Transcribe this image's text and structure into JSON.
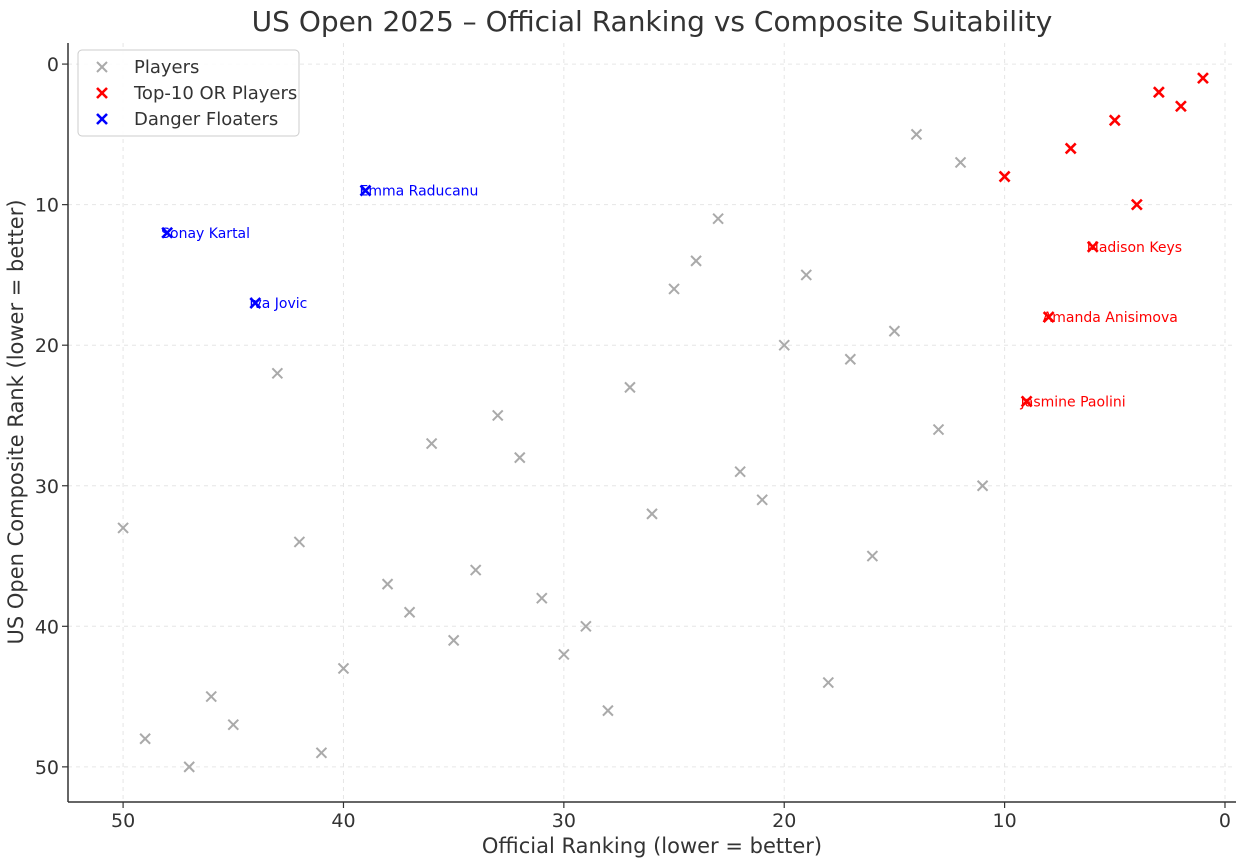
{
  "chart_data": {
    "type": "scatter",
    "title": "US Open 2025 – Official Ranking vs Composite Suitability",
    "xlabel": "Official Ranking (lower = better)",
    "ylabel": "US Open Composite Rank (lower = better)",
    "xlim": [
      52.5,
      -0.5
    ],
    "ylim": [
      52.5,
      -1.5
    ],
    "x_inverted": true,
    "y_inverted": true,
    "x_ticks": [
      50,
      40,
      30,
      20,
      10,
      0
    ],
    "y_ticks": [
      0,
      10,
      20,
      30,
      40,
      50
    ],
    "grid": true,
    "legend_position": "top-left",
    "series": [
      {
        "name": "Players",
        "color": "#aaaaaa",
        "marker": "x",
        "points": [
          {
            "x": 14,
            "y": 5
          },
          {
            "x": 12,
            "y": 7
          },
          {
            "x": 23,
            "y": 11
          },
          {
            "x": 24,
            "y": 14
          },
          {
            "x": 19,
            "y": 15
          },
          {
            "x": 25,
            "y": 16
          },
          {
            "x": 15,
            "y": 19
          },
          {
            "x": 20,
            "y": 20
          },
          {
            "x": 17,
            "y": 21
          },
          {
            "x": 43,
            "y": 22
          },
          {
            "x": 27,
            "y": 23
          },
          {
            "x": 33,
            "y": 25
          },
          {
            "x": 13,
            "y": 26
          },
          {
            "x": 36,
            "y": 27
          },
          {
            "x": 32,
            "y": 28
          },
          {
            "x": 22,
            "y": 29
          },
          {
            "x": 11,
            "y": 30
          },
          {
            "x": 21,
            "y": 31
          },
          {
            "x": 26,
            "y": 32
          },
          {
            "x": 50,
            "y": 33
          },
          {
            "x": 42,
            "y": 34
          },
          {
            "x": 16,
            "y": 35
          },
          {
            "x": 34,
            "y": 36
          },
          {
            "x": 38,
            "y": 37
          },
          {
            "x": 31,
            "y": 38
          },
          {
            "x": 37,
            "y": 39
          },
          {
            "x": 29,
            "y": 40
          },
          {
            "x": 35,
            "y": 41
          },
          {
            "x": 30,
            "y": 42
          },
          {
            "x": 40,
            "y": 43
          },
          {
            "x": 18,
            "y": 44
          },
          {
            "x": 46,
            "y": 45
          },
          {
            "x": 28,
            "y": 46
          },
          {
            "x": 45,
            "y": 47
          },
          {
            "x": 49,
            "y": 48
          },
          {
            "x": 41,
            "y": 49
          },
          {
            "x": 47,
            "y": 50
          }
        ]
      },
      {
        "name": "Top-10 OR Players",
        "color": "#ff0000",
        "marker": "x",
        "points": [
          {
            "x": 1,
            "y": 1
          },
          {
            "x": 3,
            "y": 2
          },
          {
            "x": 2,
            "y": 3
          },
          {
            "x": 5,
            "y": 4
          },
          {
            "x": 7,
            "y": 6
          },
          {
            "x": 10,
            "y": 8
          },
          {
            "x": 4,
            "y": 10
          },
          {
            "x": 6,
            "y": 13,
            "label": "Madison Keys"
          },
          {
            "x": 8,
            "y": 18,
            "label": "Amanda Anisimova"
          },
          {
            "x": 9,
            "y": 24,
            "label": "Jasmine Paolini"
          }
        ]
      },
      {
        "name": "Danger Floaters",
        "color": "#0000ff",
        "marker": "x",
        "points": [
          {
            "x": 39,
            "y": 9,
            "label": "Emma Raducanu"
          },
          {
            "x": 48,
            "y": 12,
            "label": "Sonay Kartal"
          },
          {
            "x": 44,
            "y": 17,
            "label": "Iva Jovic"
          }
        ]
      }
    ]
  }
}
